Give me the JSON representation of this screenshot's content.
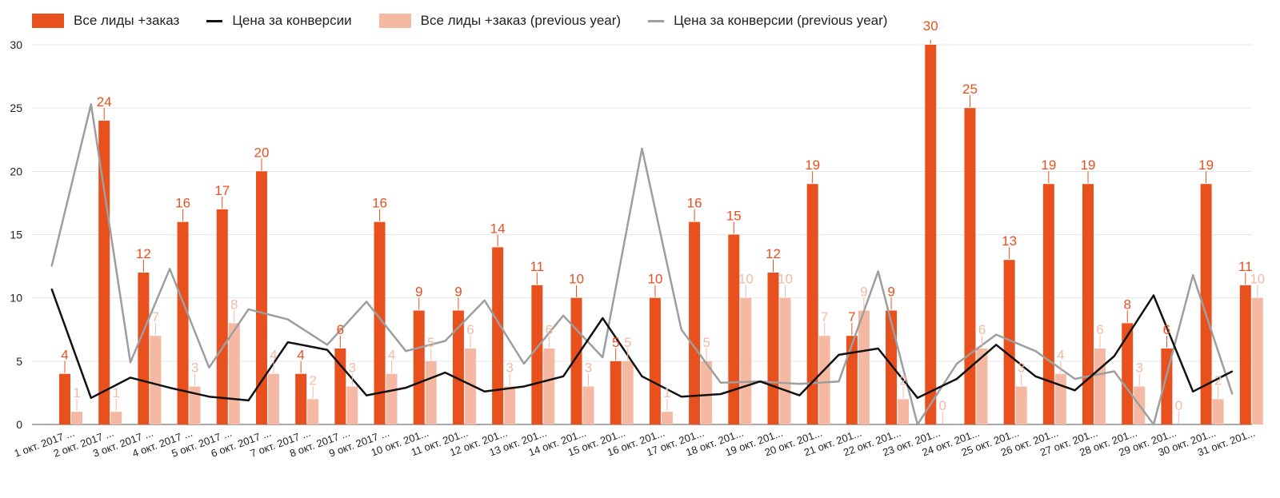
{
  "chart_data": {
    "type": "bar",
    "categories": [
      "1 окт. 2017 ...",
      "2 окт. 2017 ...",
      "3 окт. 2017 ...",
      "4 окт. 2017 ...",
      "5 окт. 2017 ...",
      "6 окт. 2017 ...",
      "7 окт. 2017 ...",
      "8 окт. 2017 ...",
      "9 окт. 2017 ...",
      "10 окт. 201...",
      "11 окт. 201...",
      "12 окт. 201...",
      "13 окт. 201...",
      "14 окт. 201...",
      "15 окт. 201...",
      "16 окт. 201...",
      "17 окт. 201...",
      "18 окт. 201...",
      "19 окт. 201...",
      "20 окт. 201...",
      "21 окт. 201...",
      "22 окт. 201...",
      "23 окт. 201...",
      "24 окт. 201...",
      "25 окт. 201...",
      "26 окт. 201...",
      "27 окт. 201...",
      "28 окт. 201...",
      "29 окт. 201...",
      "30 окт. 201...",
      "31 окт. 201..."
    ],
    "ylim": [
      0,
      30
    ],
    "yticks": [
      0,
      5,
      10,
      15,
      20,
      25,
      30
    ],
    "grid": true,
    "legend": "top-left",
    "series": [
      {
        "name": "Все лиды +заказ",
        "kind": "bar",
        "color": "#e8501e",
        "label_color": "#e8501e",
        "values": [
          4,
          24,
          12,
          16,
          17,
          20,
          4,
          6,
          16,
          9,
          9,
          14,
          11,
          10,
          5,
          10,
          16,
          15,
          12,
          19,
          7,
          9,
          30,
          25,
          13,
          19,
          19,
          8,
          6,
          19,
          11
        ]
      },
      {
        "name": "Цена за конверсии",
        "kind": "line",
        "color": "#111111",
        "values": [
          10.7,
          2.1,
          3.7,
          2.9,
          2.2,
          1.9,
          6.5,
          5.9,
          2.3,
          2.9,
          4.1,
          2.6,
          3.0,
          3.8,
          8.4,
          3.8,
          2.2,
          2.4,
          3.4,
          2.3,
          5.5,
          6.0,
          2.1,
          3.6,
          6.3,
          3.8,
          2.7,
          5.4,
          10.2,
          2.6,
          4.2
        ]
      },
      {
        "name": "Все лиды +заказ (previous year)",
        "kind": "bar",
        "color": "#f5b8a3",
        "label_color": "#f5b8a3",
        "values": [
          1,
          1,
          7,
          3,
          8,
          4,
          2,
          3,
          4,
          5,
          6,
          3,
          6,
          3,
          5,
          1,
          5,
          10,
          10,
          7,
          9,
          2,
          0,
          6,
          3,
          4,
          6,
          3,
          0,
          2,
          10
        ]
      },
      {
        "name": "Цена за конверсии (previous year)",
        "kind": "line",
        "color": "#9e9e9e",
        "values": [
          12.5,
          25.3,
          4.9,
          12.3,
          4.5,
          9.1,
          8.3,
          6.3,
          9.7,
          5.8,
          6.6,
          9.8,
          4.8,
          8.6,
          5.3,
          21.8,
          7.5,
          3.3,
          3.4,
          3.2,
          3.4,
          12.1,
          0,
          4.8,
          7.1,
          5.8,
          3.6,
          4.2,
          0,
          11.8,
          2.4
        ]
      }
    ]
  }
}
